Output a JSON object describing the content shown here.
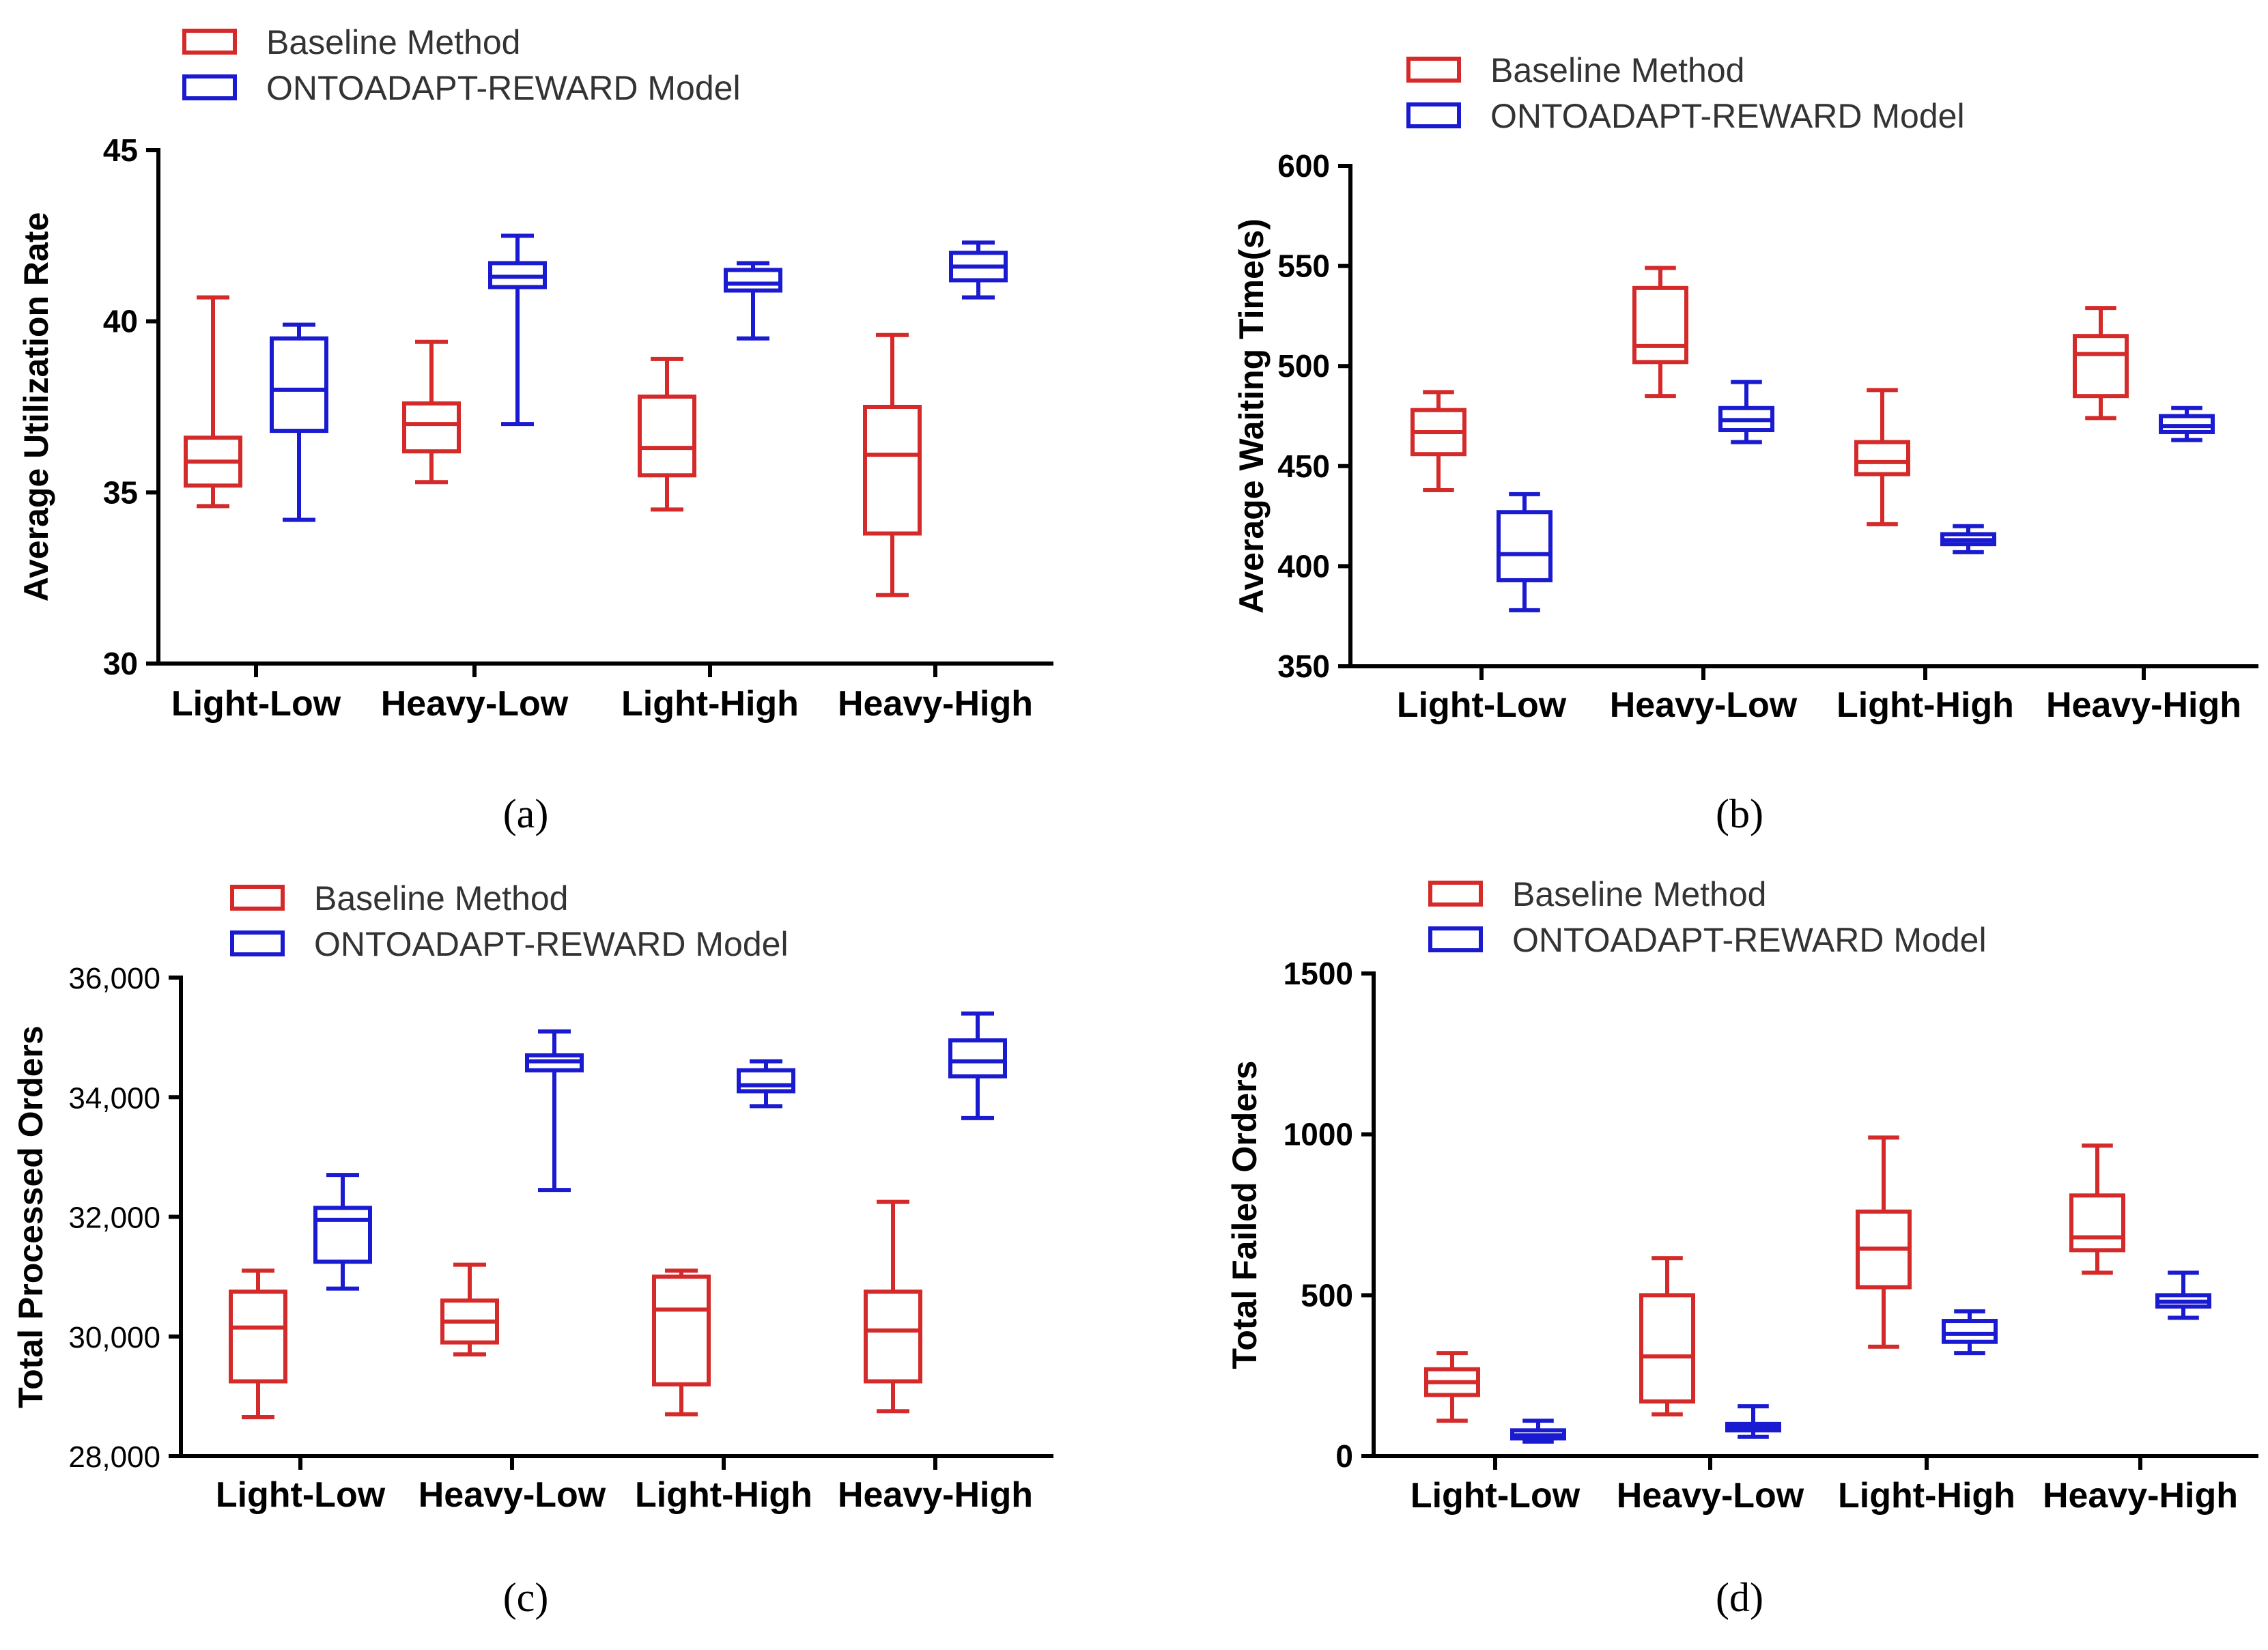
{
  "colors": {
    "baseline": "#d42a2a",
    "model": "#1a1ad0",
    "axis": "#000000"
  },
  "legend": {
    "baseline": "Baseline Method",
    "model": "ONTOADAPT-REWARD Model"
  },
  "chart_data": [
    {
      "id": "a",
      "panel_label": "(a)",
      "type": "box",
      "title": "",
      "xlabel": "",
      "ylabel": "Average Utilization Rate",
      "categories": [
        "Light-Low",
        "Heavy-Low",
        "Light-High",
        "Heavy-High"
      ],
      "ylim": [
        30,
        45
      ],
      "yticks": [
        30,
        35,
        40,
        45
      ],
      "ytick_labels": [
        "30",
        "35",
        "40",
        "45"
      ],
      "series": [
        {
          "name": "Baseline Method",
          "boxes": [
            {
              "min": 34.6,
              "q1": 35.2,
              "median": 35.9,
              "q3": 36.6,
              "max": 40.7
            },
            {
              "min": 35.3,
              "q1": 36.2,
              "median": 37.0,
              "q3": 37.6,
              "max": 39.4
            },
            {
              "min": 34.5,
              "q1": 35.5,
              "median": 36.3,
              "q3": 37.8,
              "max": 38.9
            },
            {
              "min": 32.0,
              "q1": 33.8,
              "median": 36.1,
              "q3": 37.5,
              "max": 39.6
            }
          ]
        },
        {
          "name": "ONTOADAPT-REWARD Model",
          "boxes": [
            {
              "min": 34.2,
              "q1": 36.8,
              "median": 38.0,
              "q3": 39.5,
              "max": 39.9
            },
            {
              "min": 37.0,
              "q1": 41.0,
              "median": 41.3,
              "q3": 41.7,
              "max": 42.5
            },
            {
              "min": 39.5,
              "q1": 40.9,
              "median": 41.1,
              "q3": 41.5,
              "max": 41.7
            },
            {
              "min": 40.7,
              "q1": 41.2,
              "median": 41.6,
              "q3": 42.0,
              "max": 42.3
            }
          ]
        }
      ]
    },
    {
      "id": "b",
      "panel_label": "(b)",
      "type": "box",
      "title": "",
      "xlabel": "",
      "ylabel": "Average Waiting Time(s)",
      "categories": [
        "Light-Low",
        "Heavy-Low",
        "Light-High",
        "Heavy-High"
      ],
      "ylim": [
        350,
        600
      ],
      "yticks": [
        350,
        400,
        450,
        500,
        550,
        600
      ],
      "ytick_labels": [
        "350",
        "400",
        "450",
        "500",
        "550",
        "600"
      ],
      "series": [
        {
          "name": "Baseline Method",
          "boxes": [
            {
              "min": 438,
              "q1": 456,
              "median": 467,
              "q3": 478,
              "max": 487
            },
            {
              "min": 485,
              "q1": 502,
              "median": 510,
              "q3": 539,
              "max": 549
            },
            {
              "min": 421,
              "q1": 446,
              "median": 452,
              "q3": 462,
              "max": 488
            },
            {
              "min": 474,
              "q1": 485,
              "median": 506,
              "q3": 515,
              "max": 529
            }
          ]
        },
        {
          "name": "ONTOADAPT-REWARD Model",
          "boxes": [
            {
              "min": 378,
              "q1": 393,
              "median": 406,
              "q3": 427,
              "max": 436
            },
            {
              "min": 462,
              "q1": 468,
              "median": 473,
              "q3": 479,
              "max": 492
            },
            {
              "min": 407,
              "q1": 411,
              "median": 413,
              "q3": 416,
              "max": 420
            },
            {
              "min": 463,
              "q1": 467,
              "median": 470,
              "q3": 475,
              "max": 479
            }
          ]
        }
      ]
    },
    {
      "id": "c",
      "panel_label": "(c)",
      "type": "box",
      "title": "",
      "xlabel": "",
      "ylabel": "Total Processed Orders",
      "categories": [
        "Light-Low",
        "Heavy-Low",
        "Light-High",
        "Heavy-High"
      ],
      "ylim": [
        28000,
        36000
      ],
      "yticks": [
        28000,
        30000,
        32000,
        34000,
        36000
      ],
      "ytick_labels": [
        "28,000",
        "30,000",
        "32,000",
        "34,000",
        "36,000"
      ],
      "series": [
        {
          "name": "Baseline Method",
          "boxes": [
            {
              "min": 28650,
              "q1": 29250,
              "median": 30150,
              "q3": 30750,
              "max": 31100
            },
            {
              "min": 29700,
              "q1": 29900,
              "median": 30250,
              "q3": 30600,
              "max": 31200
            },
            {
              "min": 28700,
              "q1": 29200,
              "median": 30450,
              "q3": 31000,
              "max": 31100
            },
            {
              "min": 28750,
              "q1": 29250,
              "median": 30100,
              "q3": 30750,
              "max": 32250
            }
          ]
        },
        {
          "name": "ONTOADAPT-REWARD Model",
          "boxes": [
            {
              "min": 30800,
              "q1": 31250,
              "median": 31950,
              "q3": 32150,
              "max": 32700
            },
            {
              "min": 32450,
              "q1": 34450,
              "median": 34600,
              "q3": 34700,
              "max": 35100
            },
            {
              "min": 33850,
              "q1": 34100,
              "median": 34200,
              "q3": 34450,
              "max": 34600
            },
            {
              "min": 33650,
              "q1": 34350,
              "median": 34600,
              "q3": 34950,
              "max": 35400
            }
          ]
        }
      ]
    },
    {
      "id": "d",
      "panel_label": "(d)",
      "type": "box",
      "title": "",
      "xlabel": "",
      "ylabel": "Total Failed Orders",
      "categories": [
        "Light-Low",
        "Heavy-Low",
        "Light-High",
        "Heavy-High"
      ],
      "ylim": [
        0,
        1500
      ],
      "yticks": [
        0,
        500,
        1000,
        1500
      ],
      "ytick_labels": [
        "0",
        "500",
        "1000",
        "1500"
      ],
      "series": [
        {
          "name": "Baseline Method",
          "boxes": [
            {
              "min": 110,
              "q1": 190,
              "median": 230,
              "q3": 270,
              "max": 320
            },
            {
              "min": 130,
              "q1": 170,
              "median": 310,
              "q3": 500,
              "max": 615
            },
            {
              "min": 340,
              "q1": 525,
              "median": 645,
              "q3": 760,
              "max": 990
            },
            {
              "min": 570,
              "q1": 640,
              "median": 680,
              "q3": 810,
              "max": 965
            }
          ]
        },
        {
          "name": "ONTOADAPT-REWARD Model",
          "boxes": [
            {
              "min": 45,
              "q1": 55,
              "median": 65,
              "q3": 80,
              "max": 110
            },
            {
              "min": 60,
              "q1": 80,
              "median": 90,
              "q3": 100,
              "max": 155
            },
            {
              "min": 320,
              "q1": 355,
              "median": 380,
              "q3": 420,
              "max": 450
            },
            {
              "min": 430,
              "q1": 465,
              "median": 480,
              "q3": 500,
              "max": 570
            }
          ]
        }
      ]
    }
  ]
}
